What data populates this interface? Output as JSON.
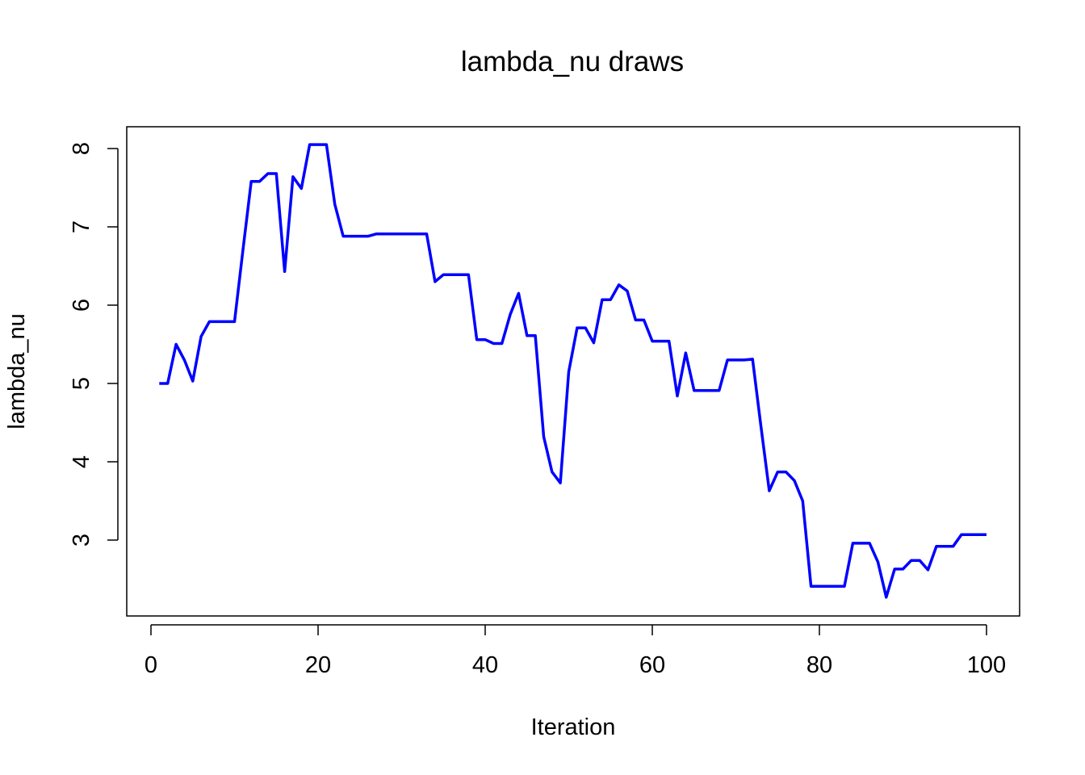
{
  "chart_data": {
    "type": "line",
    "title": "lambda_nu draws",
    "xlabel": "Iteration",
    "ylabel": "lambda_nu",
    "xlim": [
      0,
      100
    ],
    "ylim": [
      2,
      8
    ],
    "xticks": [
      0,
      20,
      40,
      60,
      80,
      100
    ],
    "yticks": [
      3,
      4,
      5,
      6,
      7,
      8
    ],
    "grid": false,
    "legend": "none",
    "series": [
      {
        "color": "#0000ff",
        "x": [
          1,
          2,
          3,
          4,
          5,
          6,
          7,
          8,
          9,
          10,
          11,
          12,
          13,
          14,
          15,
          16,
          17,
          18,
          19,
          20,
          21,
          22,
          23,
          24,
          25,
          26,
          27,
          28,
          29,
          30,
          31,
          32,
          33,
          34,
          35,
          36,
          37,
          38,
          39,
          40,
          41,
          42,
          43,
          44,
          45,
          46,
          47,
          48,
          49,
          50,
          51,
          52,
          53,
          54,
          55,
          56,
          57,
          58,
          59,
          60,
          61,
          62,
          63,
          64,
          65,
          66,
          67,
          68,
          69,
          70,
          71,
          72,
          73,
          74,
          75,
          76,
          77,
          78,
          79,
          80,
          81,
          82,
          83,
          84,
          85,
          86,
          87,
          88,
          89,
          90,
          91,
          92,
          93,
          94,
          95,
          96,
          97,
          98,
          99,
          100
        ],
        "y": [
          5.0,
          5.0,
          5.5,
          5.3,
          5.03,
          5.6,
          5.79,
          5.79,
          5.79,
          5.79,
          6.7,
          7.58,
          7.58,
          7.68,
          7.68,
          6.43,
          7.64,
          7.49,
          8.05,
          8.05,
          8.05,
          7.29,
          6.88,
          6.88,
          6.88,
          6.88,
          6.91,
          6.91,
          6.91,
          6.91,
          6.91,
          6.91,
          6.91,
          6.3,
          6.39,
          6.39,
          6.39,
          6.39,
          5.56,
          5.56,
          5.51,
          5.51,
          5.88,
          6.15,
          5.61,
          5.61,
          4.32,
          3.87,
          3.73,
          5.15,
          5.71,
          5.71,
          5.52,
          6.07,
          6.07,
          6.26,
          6.18,
          5.81,
          5.81,
          5.54,
          5.54,
          5.54,
          4.84,
          5.39,
          4.91,
          4.91,
          4.91,
          4.91,
          5.3,
          5.3,
          5.3,
          5.31,
          4.46,
          3.63,
          3.87,
          3.87,
          3.76,
          3.5,
          2.41,
          2.41,
          2.41,
          2.41,
          2.41,
          2.96,
          2.96,
          2.96,
          2.72,
          2.27,
          2.63,
          2.63,
          2.74,
          2.74,
          2.62,
          2.92,
          2.92,
          2.92,
          3.07,
          3.07,
          3.07,
          3.07
        ]
      }
    ]
  }
}
